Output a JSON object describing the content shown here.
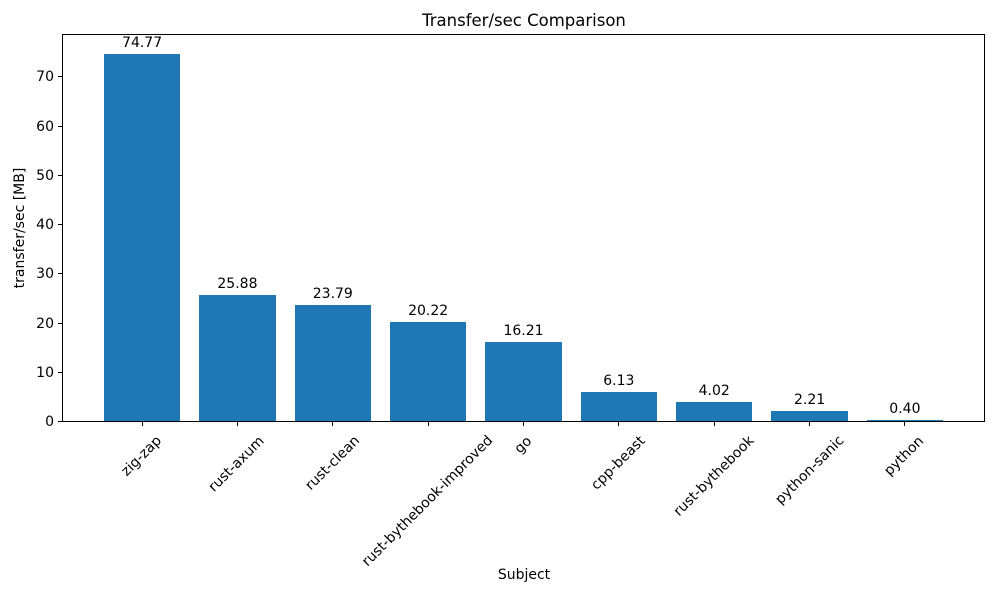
{
  "chart_data": {
    "type": "bar",
    "title": "Transfer/sec Comparison",
    "xlabel": "Subject",
    "ylabel": "transfer/sec [MB]",
    "categories": [
      "zig-zap",
      "rust-axum",
      "rust-clean",
      "rust-bythebook-improved",
      "go",
      "cpp-beast",
      "rust-bythebook",
      "python-sanic",
      "python"
    ],
    "values": [
      74.77,
      25.88,
      23.79,
      20.22,
      16.21,
      6.13,
      4.02,
      2.21,
      0.4
    ],
    "bar_labels": [
      "74.77",
      "25.88",
      "23.79",
      "20.22",
      "16.21",
      "6.13",
      "4.02",
      "2.21",
      "0.40"
    ],
    "yticks": [
      0,
      10,
      20,
      30,
      40,
      50,
      60,
      70
    ],
    "ylim": [
      0,
      78.8
    ],
    "x_tick_rotation_deg": 45,
    "grid": false,
    "legend": null,
    "bar_color": "#1f77b4",
    "text_color": "#000000",
    "spine_color": "#000000",
    "background_color": "#ffffff"
  }
}
